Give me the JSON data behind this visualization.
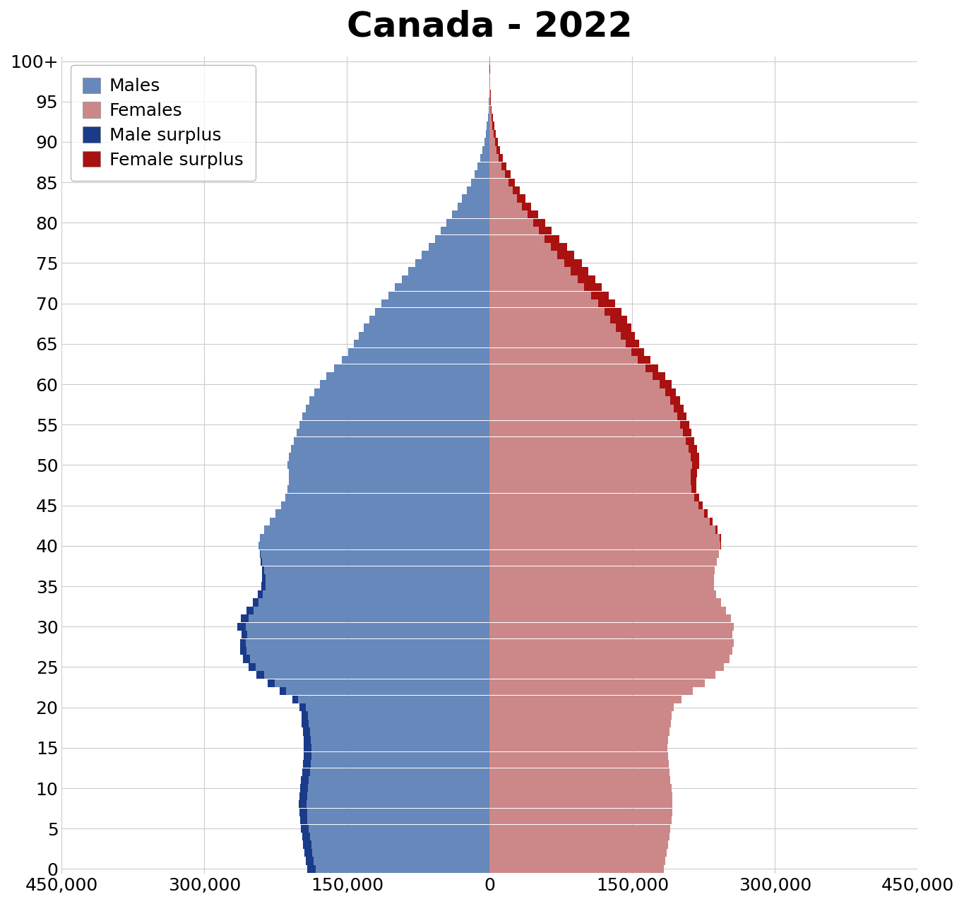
{
  "title": "Canada - 2022",
  "ages": [
    0,
    1,
    2,
    3,
    4,
    5,
    6,
    7,
    8,
    9,
    10,
    11,
    12,
    13,
    14,
    15,
    16,
    17,
    18,
    19,
    20,
    21,
    22,
    23,
    24,
    25,
    26,
    27,
    28,
    29,
    30,
    31,
    32,
    33,
    34,
    35,
    36,
    37,
    38,
    39,
    40,
    41,
    42,
    43,
    44,
    45,
    46,
    47,
    48,
    49,
    50,
    51,
    52,
    53,
    54,
    55,
    56,
    57,
    58,
    59,
    60,
    61,
    62,
    63,
    64,
    65,
    66,
    67,
    68,
    69,
    70,
    71,
    72,
    73,
    74,
    75,
    76,
    77,
    78,
    79,
    80,
    81,
    82,
    83,
    84,
    85,
    86,
    87,
    88,
    89,
    90,
    91,
    92,
    93,
    94,
    95,
    96,
    97,
    98,
    99,
    100
  ],
  "males": [
    191473,
    193614,
    194807,
    196173,
    197168,
    198372,
    199540,
    200134,
    200412,
    200008,
    199456,
    198436,
    197198,
    196155,
    195342,
    195163,
    195649,
    196358,
    197462,
    198120,
    199876,
    207358,
    220644,
    233759,
    244980,
    253644,
    259274,
    262017,
    262530,
    260754,
    265146,
    261758,
    255897,
    249284,
    243524,
    240232,
    239217,
    239371,
    240609,
    241793,
    242778,
    241505,
    237068,
    231442,
    225313,
    219444,
    215184,
    212402,
    211245,
    211444,
    212660,
    211494,
    208973,
    206068,
    202976,
    199942,
    196870,
    193593,
    189582,
    184606,
    178573,
    171537,
    163645,
    155755,
    148729,
    142830,
    137727,
    132612,
    126758,
    120625,
    113762,
    106642,
    99550,
    92454,
    85394,
    78211,
    71231,
    64274,
    57523,
    51360,
    45507,
    39826,
    33984,
    28986,
    23946,
    19750,
    15752,
    12561,
    9629,
    7485,
    5642,
    4127,
    2882,
    1965,
    1297,
    831,
    513,
    305,
    175,
    97,
    120
  ],
  "females": [
    182771,
    184906,
    186318,
    187718,
    188839,
    190121,
    191451,
    192000,
    192295,
    191790,
    191118,
    190101,
    188912,
    187967,
    187213,
    187186,
    187885,
    188808,
    190175,
    191126,
    193572,
    201641,
    213789,
    226125,
    237098,
    246199,
    252266,
    255447,
    256355,
    255169,
    256258,
    253729,
    248571,
    243371,
    238381,
    235810,
    235742,
    236861,
    238966,
    241152,
    243233,
    243096,
    239412,
    234195,
    228959,
    224015,
    219943,
    217162,
    216899,
    218143,
    220150,
    220186,
    217919,
    214993,
    212043,
    210018,
    206949,
    203835,
    200078,
    195926,
    191111,
    184878,
    177044,
    169232,
    162372,
    156847,
    152836,
    148892,
    144219,
    138267,
    131841,
    124910,
    117838,
    110868,
    103944,
    97053,
    88972,
    81132,
    73024,
    65115,
    58152,
    50879,
    43832,
    37648,
    31654,
    26627,
    21796,
    17872,
    13936,
    10878,
    8413,
    6445,
    4768,
    3378,
    2267,
    1562,
    1024,
    655,
    402,
    248,
    305
  ],
  "male_color": "#6688bb",
  "female_color": "#cc8888",
  "male_surplus_color": "#1a3a8a",
  "female_surplus_color": "#aa1111",
  "xlim": 450000,
  "background_color": "#ffffff",
  "grid_color": "#cccccc",
  "title_fontsize": 36,
  "tick_fontsize": 18,
  "legend_fontsize": 18
}
